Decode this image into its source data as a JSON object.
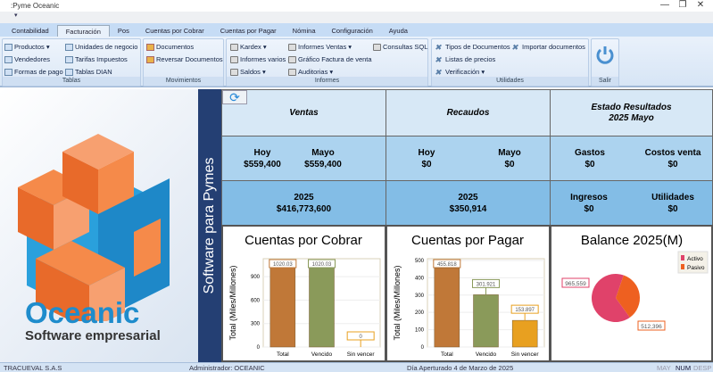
{
  "window": {
    "title": ":Pyme Oceanic",
    "quick_access": "▾"
  },
  "tabs": [
    "Contabilidad",
    "Facturación",
    "Pos",
    "Cuentas por Cobrar",
    "Cuentas por Pagar",
    "Nómina",
    "Configuración",
    "Ayuda"
  ],
  "active_tab": 1,
  "ribbon": {
    "tablas": {
      "label": "Tablas",
      "items": [
        "Productos ▾",
        "Vendedores",
        "Formas de pago",
        "Unidades de negocio",
        "Tarifas Impuestos",
        "Tablas DIAN"
      ]
    },
    "movimientos": {
      "label": "Movimientos",
      "items": [
        "Documentos",
        "Reversar Documentos"
      ]
    },
    "informes": {
      "label": "Informes",
      "items": [
        "Kardex ▾",
        "Informes varios",
        "Saldos ▾",
        "Informes Ventas ▾",
        "Gráfico Factura de venta",
        "Auditorias ▾",
        "Consultas SQL"
      ]
    },
    "utilidades": {
      "label": "Utilidades",
      "items": [
        "Tipos de Documentos",
        "Importar documentos",
        "Listas de precios",
        "Verificación ▾"
      ]
    },
    "salir": {
      "label": "Salir"
    }
  },
  "logo": {
    "name": "Oceanic",
    "tagline": "Software empresarial"
  },
  "strip_text": "Software para Pymes",
  "dashboard": {
    "ventas": {
      "title": "Ventas",
      "hoy_label": "Hoy",
      "hoy": "$559,400",
      "mes_label": "Mayo",
      "mes": "$559,400",
      "year_label": "2025",
      "year": "$416,773,600"
    },
    "recaudos": {
      "title": "Recaudos",
      "hoy_label": "Hoy",
      "hoy": "$0",
      "mes_label": "Mayo",
      "mes": "$0",
      "year_label": "2025",
      "year": "$350,914"
    },
    "estado": {
      "title": "Estado Resultados",
      "subtitle": "2025 Mayo",
      "gastos_label": "Gastos",
      "gastos": "$0",
      "costos_label": "Costos venta",
      "costos": "$0",
      "ingresos_label": "Ingresos",
      "ingresos": "$0",
      "utilidades_label": "Utilidades",
      "utilidades": "$0"
    }
  },
  "chart_data": [
    {
      "type": "bar",
      "title": "Cuentas por Cobrar",
      "ylabel": "Total (Miles/Millones)",
      "categories": [
        "Total",
        "Vencido",
        "Sin vencer"
      ],
      "values": [
        1020.03,
        1020.03,
        0
      ],
      "labels": [
        "1020.03",
        "1020.03",
        "0"
      ],
      "yticks": [
        0,
        300,
        600,
        900
      ],
      "ylim": [
        0,
        1130
      ],
      "colors": [
        "#c07838",
        "#8a9a5a",
        "#e8a020"
      ]
    },
    {
      "type": "bar",
      "title": "Cuentas por Pagar",
      "ylabel": "Total (Miles/Millones)",
      "categories": [
        "Total",
        "Vencido",
        "Sin vencer"
      ],
      "values": [
        455.818,
        301.921,
        153.897
      ],
      "labels": [
        "455.818",
        "301.921",
        "153.897"
      ],
      "yticks": [
        0,
        100,
        200,
        300,
        400,
        500
      ],
      "ylim": [
        0,
        510
      ],
      "colors": [
        "#c07838",
        "#8a9a5a",
        "#e8a020"
      ]
    },
    {
      "type": "pie",
      "title": "Balance 2025(M)",
      "categories": [
        "Activo",
        "Pasivo"
      ],
      "values": [
        965.559,
        512.396
      ],
      "labels": [
        "965,559",
        "512,396"
      ],
      "colors": [
        "#e0426a",
        "#ee6020"
      ],
      "legend": "top-right"
    }
  ],
  "status": {
    "company": "TRACUEVAL S.A.S",
    "user": "Administrador: OCEANIC",
    "day": "Día Aperturado 4 de Marzo de 2025",
    "may": "MAY",
    "num": "NUM",
    "desp": "DESP"
  }
}
